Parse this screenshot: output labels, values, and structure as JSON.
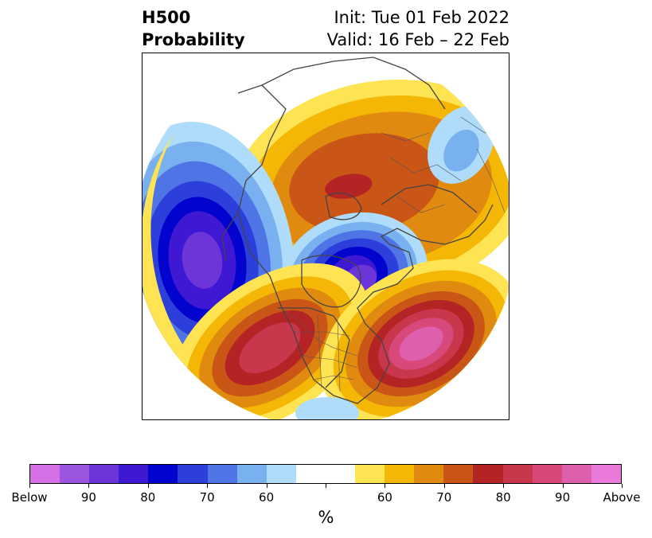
{
  "header": {
    "title_line1": "H500",
    "title_line2": "Probability",
    "init_text": "Init: Tue 01 Feb 2022",
    "valid_text": "Valid: 16 Feb – 22 Feb"
  },
  "map": {
    "projection": "north-polar-stereographic",
    "features": [
      {
        "name": "below-anomaly-north-pacific-aleutians",
        "category": "Below",
        "peak_probability": 90
      },
      {
        "name": "below-anomaly-hudson-bay-canada",
        "category": "Below",
        "peak_probability": 90
      },
      {
        "name": "below-anomaly-scandinavia",
        "category": "Below",
        "peak_probability": 60
      },
      {
        "name": "below-anomaly-caribbean",
        "category": "Below",
        "peak_probability": 60
      },
      {
        "name": "above-anomaly-western-us",
        "category": "Above",
        "peak_probability": 90
      },
      {
        "name": "above-anomaly-north-atlantic",
        "category": "Above",
        "peak_probability": 90
      },
      {
        "name": "above-anomaly-siberia-arctic",
        "category": "Above",
        "peak_probability": 80
      }
    ]
  },
  "colorbar": {
    "colors": [
      "#d670e6",
      "#9c55e0",
      "#6b35d8",
      "#3f18d3",
      "#0303ce",
      "#2c3fdb",
      "#4e74e6",
      "#79b0f0",
      "#afdcfb",
      "#ffffff",
      "#ffffff",
      "#fee353",
      "#f4b705",
      "#e18a10",
      "#c95516",
      "#b52424",
      "#c8374c",
      "#d6497a",
      "#de60ad",
      "#e97ada"
    ],
    "tick_labels": [
      "Below",
      "90",
      "80",
      "70",
      "60",
      "",
      "60",
      "70",
      "80",
      "90",
      "Above"
    ],
    "unit": "%"
  }
}
